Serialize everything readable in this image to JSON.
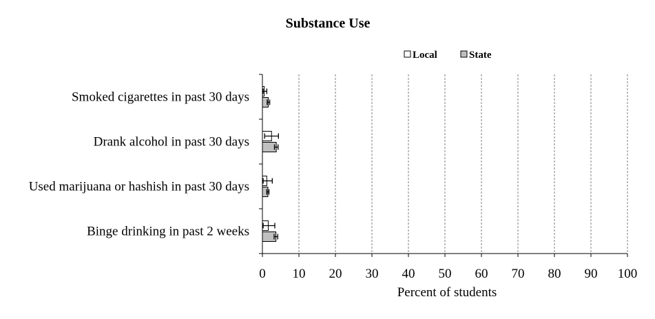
{
  "chart_data": {
    "type": "bar",
    "orientation": "horizontal",
    "title": "Substance Use",
    "xlabel": "Percent of students",
    "ylabel": "",
    "xlim": [
      0,
      100
    ],
    "x_ticks": [
      "0",
      "10",
      "20",
      "30",
      "40",
      "50",
      "60",
      "70",
      "80",
      "90",
      "100"
    ],
    "grid": "vertical dashed",
    "legend_position": "top-right",
    "categories": [
      "Smoked cigarettes in past 30 days",
      "Drank alcohol in past 30 days",
      "Used marijuana or hashish in past 30 days",
      "Binge drinking in past 2 weeks"
    ],
    "series": [
      {
        "name": "Local",
        "color": "#ffffff",
        "values": [
          0.5,
          2.5,
          1.2,
          1.6
        ],
        "error": [
          [
            0.2,
            1.2
          ],
          [
            0.6,
            4.4
          ],
          [
            0.2,
            2.7
          ],
          [
            0.2,
            3.4
          ]
        ]
      },
      {
        "name": "State",
        "color": "#c0c0c0",
        "values": [
          1.6,
          3.8,
          1.5,
          3.7
        ],
        "error": [
          [
            1.3,
            2.0
          ],
          [
            3.3,
            4.3
          ],
          [
            1.2,
            1.8
          ],
          [
            3.2,
            4.2
          ]
        ]
      }
    ]
  }
}
